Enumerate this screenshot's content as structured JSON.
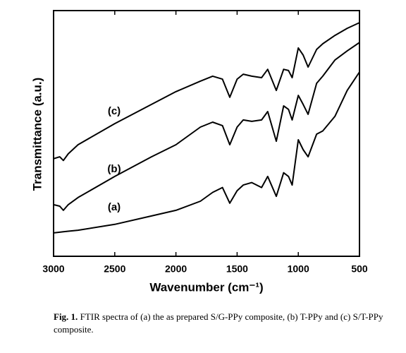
{
  "chart_data": {
    "type": "line",
    "xlabel": "Wavenumber (cm⁻¹)",
    "ylabel": "Transmittance (a.u.)",
    "x": [
      3000,
      2950,
      2920,
      2880,
      2800,
      2500,
      2200,
      2000,
      1800,
      1700,
      1620,
      1560,
      1500,
      1450,
      1380,
      1300,
      1250,
      1180,
      1120,
      1080,
      1050,
      1000,
      960,
      920,
      850,
      800,
      700,
      600,
      500
    ],
    "series": [
      {
        "name": "(a)",
        "color": "#000000",
        "values": [
          9.5,
          9.8,
          10,
          10.2,
          10.6,
          13,
          16.4,
          18.7,
          22.4,
          26,
          28,
          21.6,
          26.7,
          29,
          30,
          28,
          32.5,
          24.4,
          34,
          32.5,
          29,
          47.4,
          43.4,
          40.5,
          49.7,
          51,
          57,
          67.5,
          75
        ]
      },
      {
        "name": "(b)",
        "color": "#000000",
        "values": [
          21,
          20.4,
          18.7,
          21,
          23.9,
          32.5,
          40.5,
          45.4,
          52.6,
          54.6,
          53.2,
          45.4,
          52.6,
          55.5,
          54.9,
          55.5,
          58.9,
          46.8,
          61.2,
          59.8,
          55.5,
          65.5,
          61.8,
          57.8,
          70.4,
          73.3,
          79.9,
          83.6,
          87
        ]
      },
      {
        "name": "(c)",
        "color": "#000000",
        "values": [
          39.7,
          40.5,
          39,
          41.7,
          45.4,
          54,
          61.8,
          67,
          71.3,
          73.3,
          72.1,
          64.7,
          72.1,
          74.1,
          73.3,
          72.7,
          76.1,
          67.5,
          76.1,
          75.6,
          72.7,
          84.8,
          81.9,
          77,
          84.2,
          86.5,
          89.9,
          92.8,
          95.1
        ]
      }
    ],
    "xlim": [
      3000,
      500
    ],
    "xticks": [
      3000,
      2500,
      2000,
      1500,
      1000,
      500
    ],
    "ylim": [
      0,
      100
    ],
    "caption_label": "Fig. 1.",
    "caption": "FTIR spectra of (a) the as prepared S/G-PPy composite, (b) T-PPy and (c) S/T-PPy composite."
  }
}
